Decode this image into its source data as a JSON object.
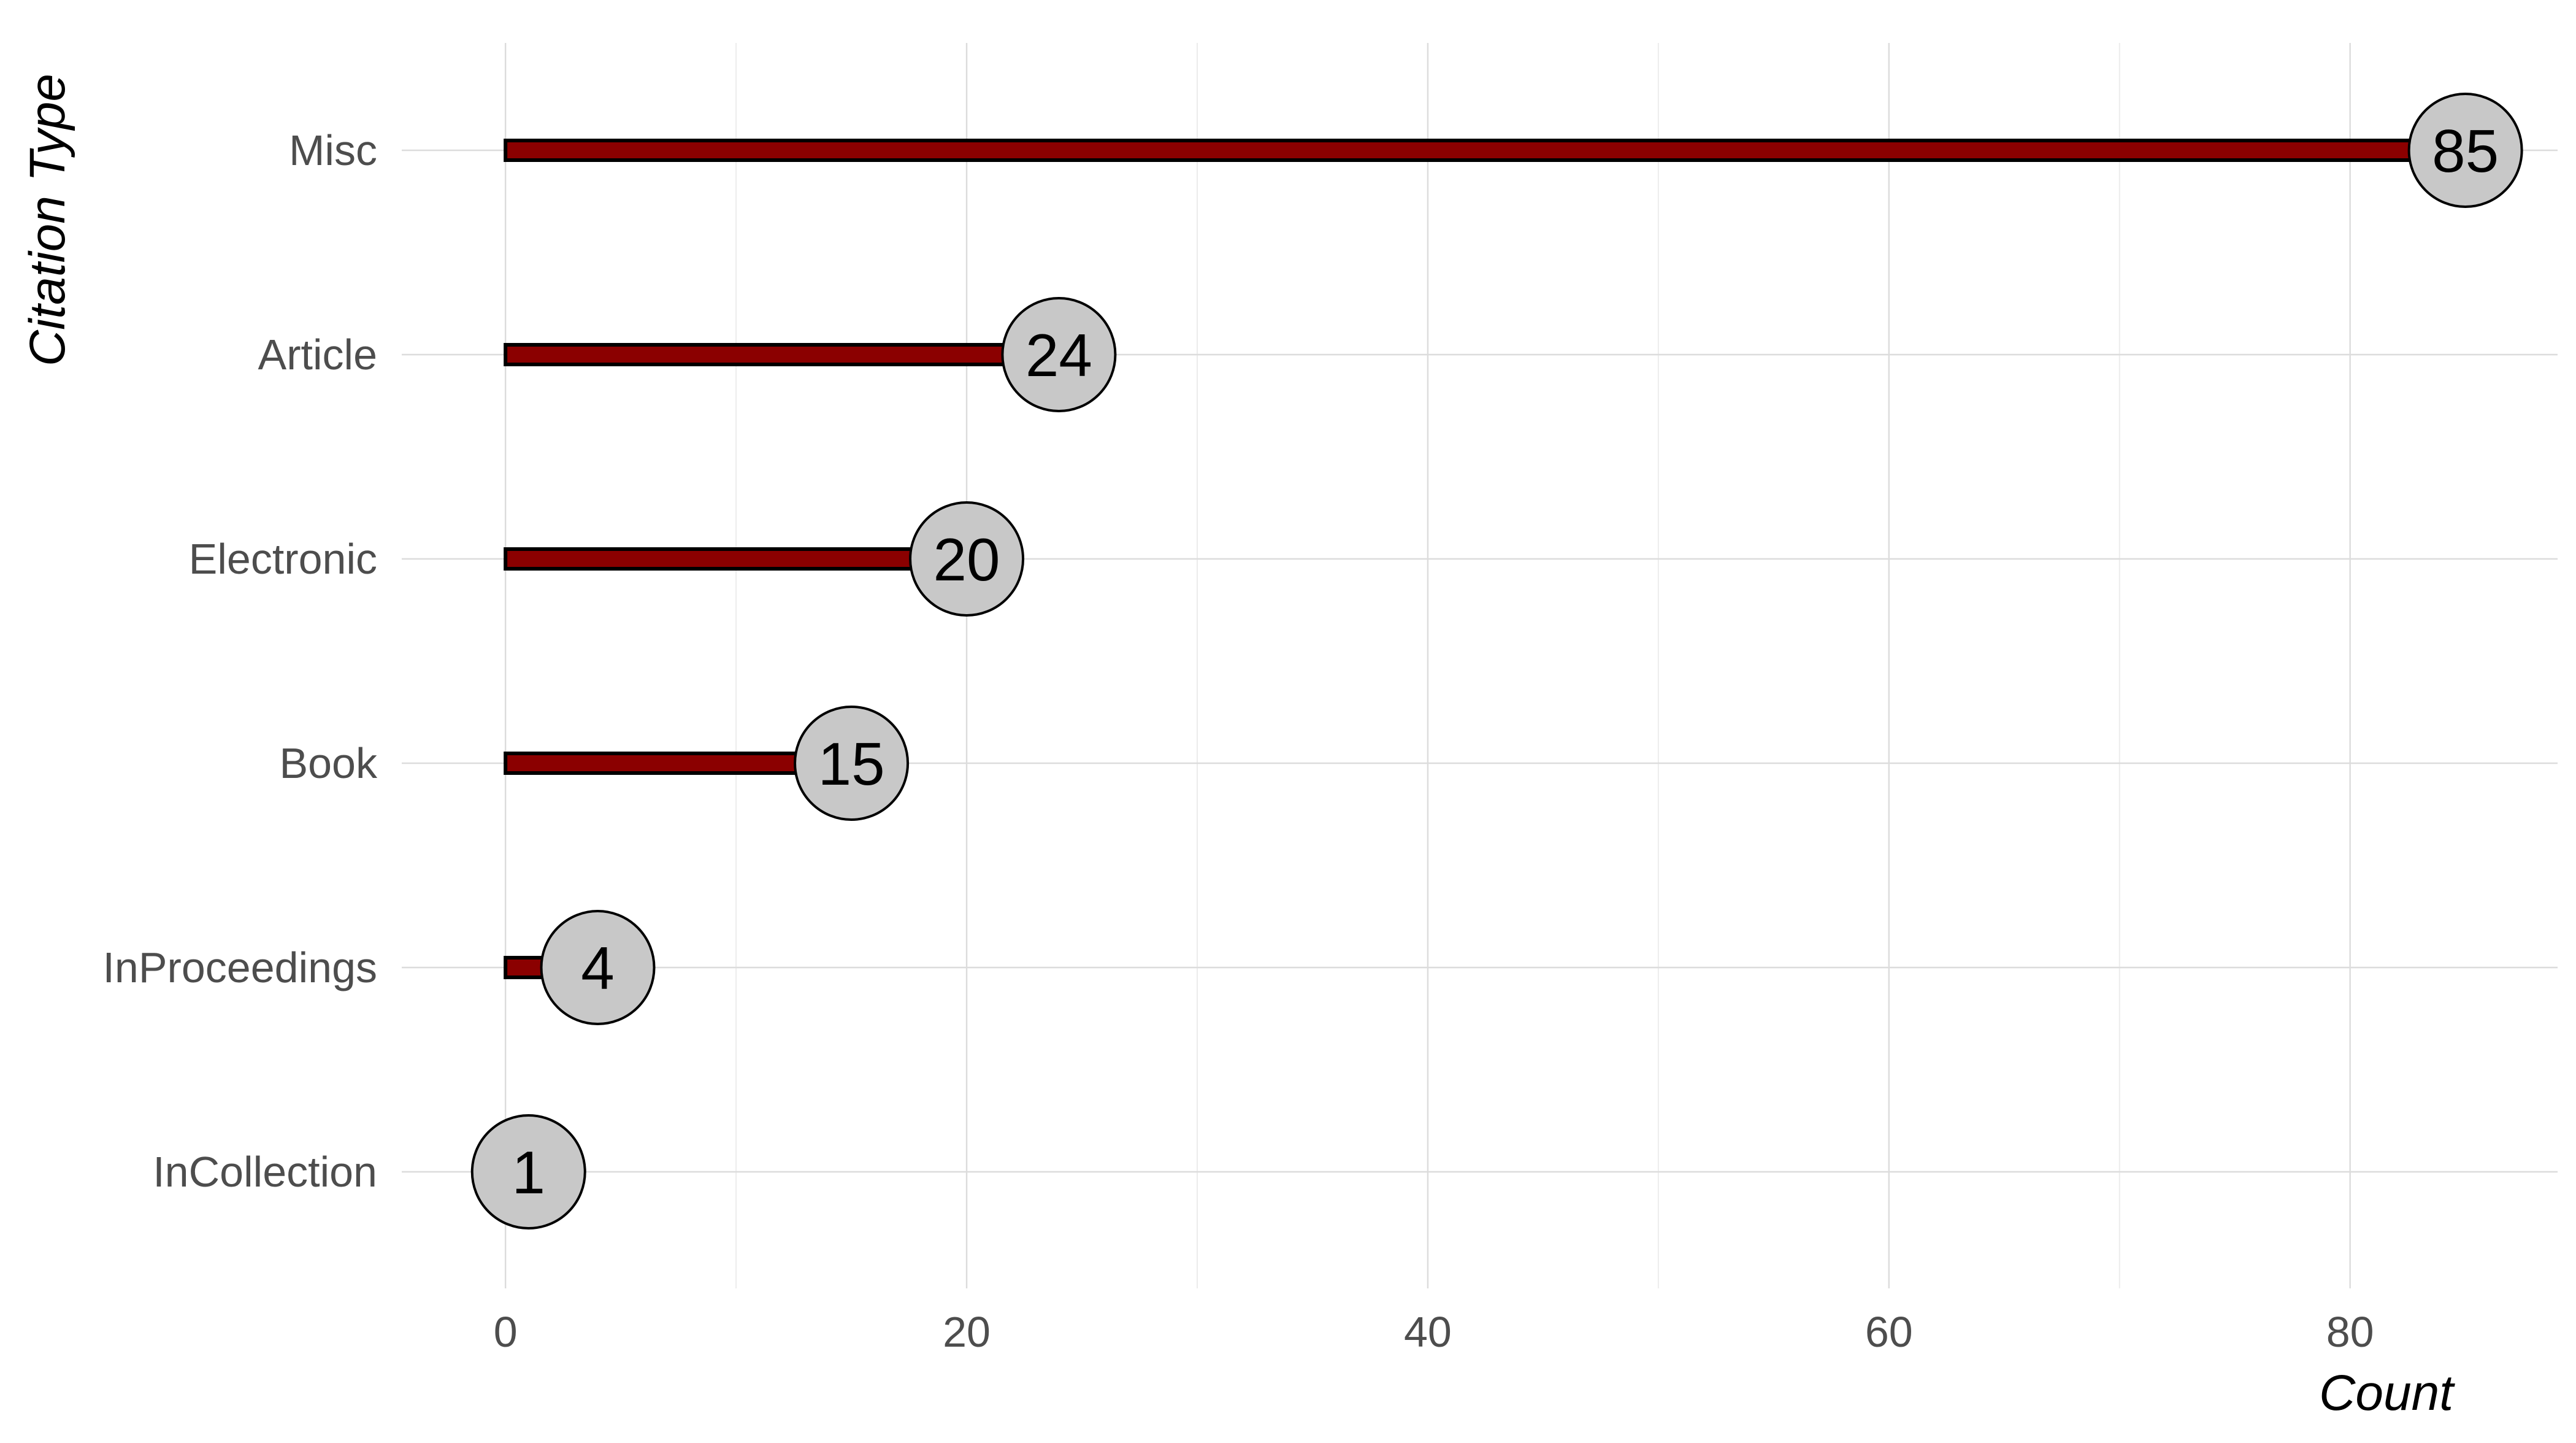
{
  "chart_data": {
    "type": "bar",
    "style": "lollipop",
    "orientation": "horizontal",
    "categories": [
      "Misc",
      "Article",
      "Electronic",
      "Book",
      "InProceedings",
      "InCollection"
    ],
    "values": [
      85,
      24,
      20,
      15,
      4,
      1
    ],
    "xlabel": "Count",
    "ylabel": "Citation Type",
    "xlim": [
      -4.5,
      89
    ],
    "x_ticks": [
      0,
      20,
      40,
      60,
      80
    ],
    "grid": true,
    "legend": "none",
    "colors": {
      "bar_fill": "#8b0000",
      "bar_outline": "#000000",
      "point_fill": "#c8c8c8",
      "point_outline": "#000000",
      "grid_major": "#dcdcdc",
      "grid_minor": "#ececec"
    }
  }
}
